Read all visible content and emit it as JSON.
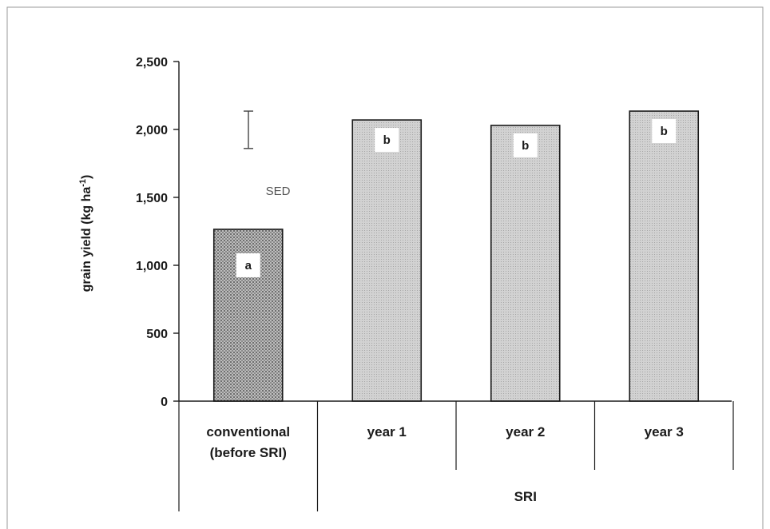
{
  "chart_data": {
    "type": "bar",
    "title": "",
    "xlabel": "",
    "ylabel_main": "grain yield (kg ha",
    "ylabel_sup": "-1",
    "ylabel_close": ")",
    "ylim": [
      0,
      2500
    ],
    "yticks": [
      0,
      500,
      1000,
      1500,
      2000,
      2500
    ],
    "ytick_labels": [
      "0",
      "500",
      "1,000",
      "1,500",
      "2,000",
      "2,500"
    ],
    "categories": [
      {
        "line1": "conventional",
        "line2": "(before SRI)"
      },
      {
        "line1": "year 1",
        "line2": ""
      },
      {
        "line1": "year 2",
        "line2": ""
      },
      {
        "line1": "year 3",
        "line2": ""
      }
    ],
    "values": [
      1265,
      2070,
      2030,
      2135
    ],
    "significance_letters": [
      "a",
      "b",
      "b",
      "b"
    ],
    "group_label": "SRI",
    "sed": {
      "label": "SED",
      "low": 1860,
      "high": 2135
    },
    "colors": {
      "conventional_fill": "#a9a9a9",
      "sri_fill": "#c9c9c9",
      "outline": "#1a1a1a"
    }
  }
}
